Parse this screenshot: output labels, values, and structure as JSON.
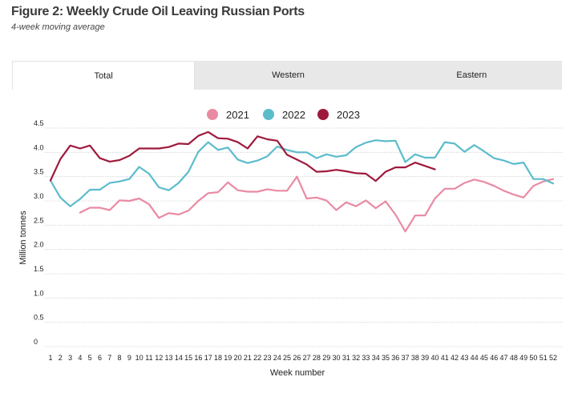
{
  "header": {
    "title": "Figure 2: Weekly Crude Oil Leaving Russian Ports",
    "subtitle": "4-week moving average"
  },
  "tabs": [
    {
      "label": "Total",
      "active": true
    },
    {
      "label": "Western",
      "active": false
    },
    {
      "label": "Eastern",
      "active": false
    }
  ],
  "chart_data": {
    "type": "line",
    "title": "Figure 2: Weekly Crude Oil Leaving Russian Ports",
    "subtitle": "4-week moving average",
    "xlabel": "Week number",
    "ylabel": "Million tonnes",
    "ylim": [
      0,
      4.5
    ],
    "yticks": [
      "0",
      "0.5",
      "1.0",
      "1.5",
      "2.0",
      "2.5",
      "3.0",
      "3.5",
      "4.0",
      "4.5"
    ],
    "x": [
      1,
      2,
      3,
      4,
      5,
      6,
      7,
      8,
      9,
      10,
      11,
      12,
      13,
      14,
      15,
      16,
      17,
      18,
      19,
      20,
      21,
      22,
      23,
      24,
      25,
      26,
      27,
      28,
      29,
      30,
      31,
      32,
      33,
      34,
      35,
      36,
      37,
      38,
      39,
      40,
      41,
      42,
      43,
      44,
      45,
      46,
      47,
      48,
      49,
      50,
      51,
      52
    ],
    "grid": true,
    "legend_position": "top-center",
    "series": [
      {
        "name": "2021",
        "color": "#e98aa3",
        "values": [
          null,
          null,
          null,
          2.76,
          2.86,
          2.86,
          2.81,
          3.01,
          3.0,
          3.05,
          2.93,
          2.65,
          2.75,
          2.72,
          2.8,
          3.0,
          3.16,
          3.18,
          3.38,
          3.22,
          3.19,
          3.19,
          3.24,
          3.21,
          3.21,
          3.5,
          3.05,
          3.07,
          3.01,
          2.81,
          2.97,
          2.89,
          3.01,
          2.85,
          2.99,
          2.72,
          2.37,
          2.7,
          2.7,
          3.05,
          3.25,
          3.25,
          3.37,
          3.44,
          3.39,
          3.31,
          3.21,
          3.13,
          3.07,
          3.31,
          3.4,
          3.45
        ]
      },
      {
        "name": "2022",
        "color": "#5bbccc",
        "values": [
          3.42,
          3.07,
          2.89,
          3.04,
          3.23,
          3.23,
          3.37,
          3.4,
          3.45,
          3.7,
          3.56,
          3.28,
          3.22,
          3.37,
          3.6,
          4.01,
          4.21,
          4.05,
          4.1,
          3.85,
          3.78,
          3.83,
          3.92,
          4.12,
          4.05,
          4.0,
          4.0,
          3.88,
          3.96,
          3.91,
          3.94,
          4.11,
          4.2,
          4.25,
          4.23,
          4.24,
          3.8,
          3.96,
          3.89,
          3.89,
          4.21,
          4.18,
          4.01,
          4.15,
          4.02,
          3.88,
          3.83,
          3.76,
          3.79,
          3.45,
          3.45,
          3.36
        ]
      },
      {
        "name": "2023",
        "color": "#9e1a3c",
        "values": [
          3.42,
          3.86,
          4.14,
          4.08,
          4.14,
          3.88,
          3.81,
          3.84,
          3.93,
          4.08,
          4.08,
          4.08,
          4.11,
          4.18,
          4.17,
          4.34,
          4.42,
          4.29,
          4.28,
          4.21,
          4.08,
          4.33,
          4.27,
          4.24,
          3.95,
          3.85,
          3.75,
          3.6,
          3.61,
          3.64,
          3.61,
          3.57,
          3.56,
          3.41,
          3.6,
          3.69,
          3.69,
          3.79,
          3.72,
          3.65,
          null,
          null,
          null,
          null,
          null,
          null,
          null,
          null,
          null,
          null,
          null,
          null
        ]
      }
    ]
  }
}
